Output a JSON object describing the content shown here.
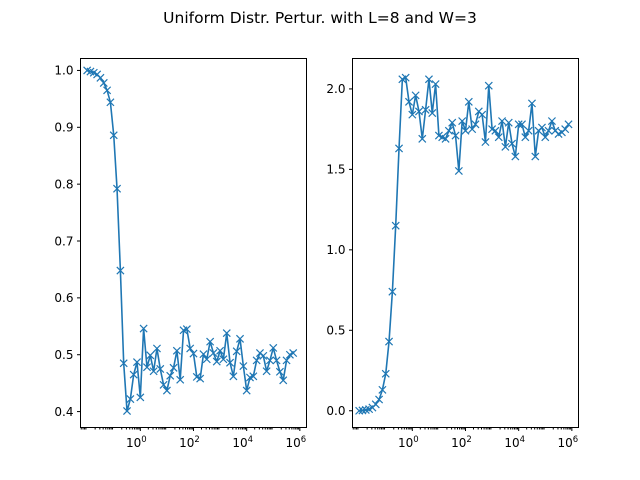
{
  "figure": {
    "title": "Uniform Distr. Pertur. with L=8 and W=3"
  },
  "chart_data": [
    {
      "type": "line",
      "x_scale": "log",
      "xlim_exp": [
        -2.25,
        6.25
      ],
      "ylim": [
        0.372,
        1.021
      ],
      "x_ticks": [
        {
          "exp": 0,
          "label": "0"
        },
        {
          "exp": 2,
          "label": "2"
        },
        {
          "exp": 4,
          "label": "4"
        },
        {
          "exp": 6,
          "label": "6"
        }
      ],
      "x_tick_base": "10",
      "y_ticks": [
        0.4,
        0.5,
        0.6,
        0.7,
        0.8,
        0.9,
        1.0
      ],
      "y_tick_labels": [
        "0.4",
        "0.5",
        "0.6",
        "0.7",
        "0.8",
        "0.9",
        "1.0"
      ],
      "color": "#1f77b4",
      "marker": "x",
      "series": [
        {
          "x": [
            0.01,
            0.0133,
            0.0178,
            0.0237,
            0.0316,
            0.0422,
            0.0562,
            0.075,
            0.1,
            0.133,
            0.178,
            0.237,
            0.316,
            0.422,
            0.562,
            0.75,
            1,
            1.33,
            1.78,
            2.37,
            3.16,
            4.22,
            5.62,
            7.5,
            10,
            13.3,
            17.8,
            23.7,
            31.6,
            42.2,
            56.2,
            75,
            100,
            133,
            178,
            237,
            316,
            422,
            562,
            750,
            1000,
            1330,
            1780,
            2370,
            3160,
            4220,
            5620,
            7500,
            10000,
            13300,
            17800,
            23700,
            31600,
            42200,
            56200,
            75000,
            100000,
            133000,
            178000,
            237000,
            316000,
            422000,
            562000
          ],
          "y": [
            1.0,
            0.998,
            0.996,
            0.993,
            0.987,
            0.978,
            0.965,
            0.944,
            0.886,
            0.792,
            0.648,
            0.485,
            0.401,
            0.422,
            0.465,
            0.487,
            0.425,
            0.546,
            0.478,
            0.499,
            0.471,
            0.511,
            0.475,
            0.447,
            0.437,
            0.463,
            0.477,
            0.507,
            0.456,
            0.543,
            0.545,
            0.511,
            0.502,
            0.461,
            0.458,
            0.501,
            0.492,
            0.523,
            0.503,
            0.488,
            0.507,
            0.492,
            0.538,
            0.486,
            0.462,
            0.506,
            0.528,
            0.48,
            0.437,
            0.46,
            0.462,
            0.49,
            0.503,
            0.498,
            0.471,
            0.49,
            0.512,
            0.49,
            0.47,
            0.455,
            0.49,
            0.5,
            0.503
          ]
        }
      ]
    },
    {
      "type": "line",
      "x_scale": "log",
      "xlim_exp": [
        -2.25,
        6.25
      ],
      "ylim": [
        -0.104,
        2.189
      ],
      "x_ticks": [
        {
          "exp": 0,
          "label": "0"
        },
        {
          "exp": 2,
          "label": "2"
        },
        {
          "exp": 4,
          "label": "4"
        },
        {
          "exp": 6,
          "label": "6"
        }
      ],
      "x_tick_base": "10",
      "y_ticks": [
        0.0,
        0.5,
        1.0,
        1.5,
        2.0
      ],
      "y_tick_labels": [
        "0.0",
        "0.5",
        "1.0",
        "1.5",
        "2.0"
      ],
      "color": "#1f77b4",
      "marker": "x",
      "series": [
        {
          "x": [
            0.01,
            0.0133,
            0.0178,
            0.0237,
            0.0316,
            0.0422,
            0.0562,
            0.075,
            0.1,
            0.133,
            0.178,
            0.237,
            0.316,
            0.422,
            0.562,
            0.75,
            1,
            1.33,
            1.78,
            2.37,
            3.16,
            4.22,
            5.62,
            7.5,
            10,
            13.3,
            17.8,
            23.7,
            31.6,
            42.2,
            56.2,
            75,
            100,
            133,
            178,
            237,
            316,
            422,
            562,
            750,
            1000,
            1330,
            1780,
            2370,
            3160,
            4220,
            5620,
            7500,
            10000,
            13300,
            17800,
            23700,
            31600,
            42200,
            56200,
            75000,
            100000,
            133000,
            178000,
            237000,
            316000,
            422000,
            562000,
            750000
          ],
          "y": [
            0.0,
            0.002,
            0.005,
            0.01,
            0.02,
            0.04,
            0.07,
            0.13,
            0.23,
            0.43,
            0.74,
            1.15,
            1.63,
            2.06,
            2.07,
            1.92,
            1.84,
            1.96,
            1.86,
            1.69,
            1.87,
            2.06,
            1.85,
            2.03,
            1.71,
            1.7,
            1.69,
            1.74,
            1.79,
            1.71,
            1.49,
            1.8,
            1.74,
            1.92,
            1.75,
            1.78,
            1.86,
            1.84,
            1.67,
            2.02,
            1.75,
            1.74,
            1.7,
            1.8,
            1.64,
            1.79,
            1.66,
            1.58,
            1.78,
            1.78,
            1.7,
            1.74,
            1.91,
            1.58,
            1.74,
            1.76,
            1.7,
            1.74,
            1.8,
            1.74,
            1.72,
            1.73,
            1.75,
            1.78
          ]
        }
      ]
    }
  ]
}
